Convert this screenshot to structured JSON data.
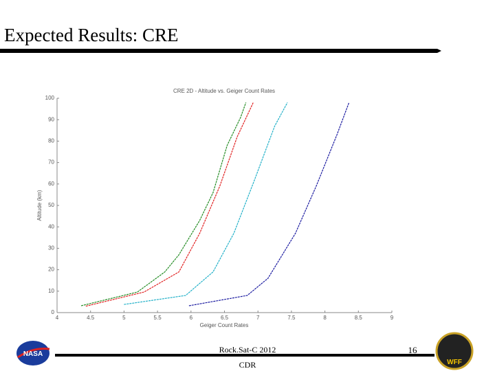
{
  "slide": {
    "title": "Expected Results: CRE",
    "footer": "Rock.Sat-C 2012",
    "subfooter": "CDR",
    "page": "16",
    "logo_left": "NASA",
    "logo_right": "WFF"
  },
  "chart_data": {
    "type": "line",
    "title": "CRE 2D - Altitude vs. Geiger Count Rates",
    "xlabel": "Geiger Count Rates",
    "ylabel": "Altitude (km)",
    "xlim": [
      4,
      9
    ],
    "xticks": [
      4,
      4.5,
      5,
      5.5,
      6,
      6.5,
      7,
      7.5,
      8,
      8.5,
      9
    ],
    "ylim": [
      0,
      100
    ],
    "yticks": [
      0,
      10,
      20,
      30,
      40,
      50,
      60,
      70,
      80,
      90,
      100
    ],
    "series": [
      {
        "color": "#228b22",
        "x": [
          4.36,
          5.2,
          5.61,
          5.82,
          6.13,
          6.33,
          6.54,
          6.74,
          6.82
        ],
        "values": [
          3.2,
          9.6,
          19,
          27,
          43,
          56,
          78,
          91,
          98
        ]
      },
      {
        "color": "#e02020",
        "x": [
          4.43,
          5.3,
          5.82,
          6.13,
          6.43,
          6.69,
          6.93
        ],
        "values": [
          3,
          9.6,
          19,
          37,
          59,
          82,
          98
        ]
      },
      {
        "color": "#20b0c8",
        "x": [
          5.0,
          5.92,
          6.33,
          6.64,
          6.95,
          7.25,
          7.44
        ],
        "values": [
          3.8,
          8,
          19,
          37,
          62,
          87,
          98
        ]
      },
      {
        "color": "#1a1aa0",
        "x": [
          5.97,
          6.84,
          7.15,
          7.56,
          7.87,
          8.18,
          8.36
        ],
        "values": [
          3.2,
          8,
          16,
          37,
          59,
          83,
          98
        ]
      }
    ]
  }
}
